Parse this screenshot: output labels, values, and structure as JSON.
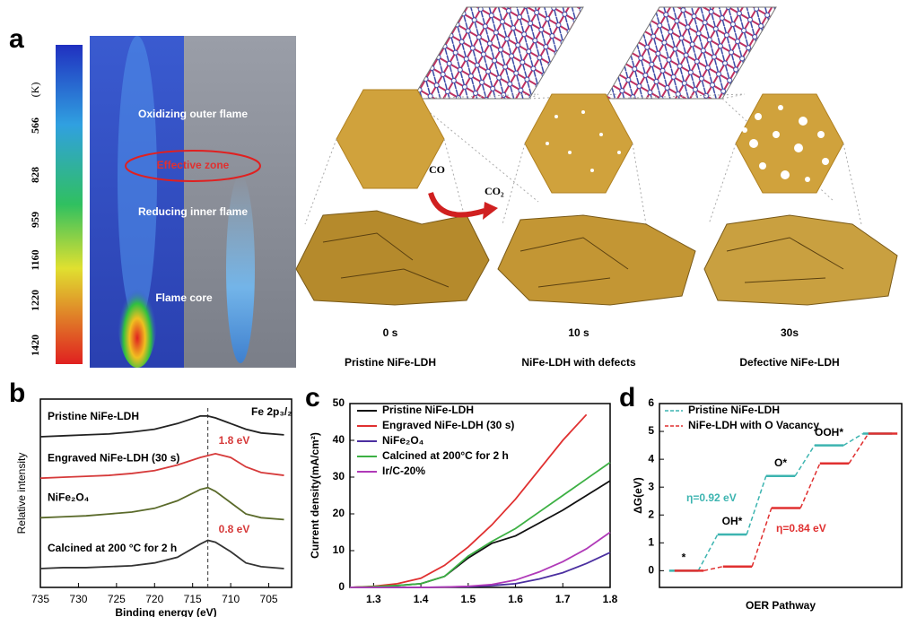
{
  "panel_a": {
    "panel": "a",
    "colorbar_unit": "(K)",
    "colorbar_ticks": [
      566,
      828,
      959,
      1160,
      1220,
      1420
    ],
    "flame_labels": [
      "Oxidizing outer flame",
      "Effective zone",
      "Reducing inner flame",
      "Flame core"
    ],
    "reactant": "CO",
    "product": "CO₂",
    "times": [
      "0 s",
      "10 s",
      "30s"
    ],
    "samples": [
      "Pristine NiFe-LDH",
      "NiFe-LDH with defects",
      "Defective NiFe-LDH"
    ]
  },
  "chart_data": [
    {
      "type": "spectra",
      "panel": "b",
      "title": "Fe 2p₃/₂",
      "ylabel": "Relative intensity",
      "xlabel": "Binding energy (eV)",
      "x": [
        735,
        732,
        729,
        726,
        723,
        720,
        717,
        714,
        713,
        712,
        710,
        708,
        706,
        703
      ],
      "xlim": [
        735,
        702
      ],
      "xticks": [
        735,
        730,
        725,
        720,
        715,
        710,
        705
      ],
      "ylim": [
        0,
        10
      ],
      "reference_x": 713,
      "shift_labels": [
        "1.8 eV",
        "0.8 eV"
      ],
      "series": [
        {
          "name": "Pristine NiFe-LDH",
          "color": "#222222",
          "values": [
            8.0,
            8.05,
            8.1,
            8.15,
            8.25,
            8.4,
            8.7,
            9.1,
            9.1,
            9.0,
            8.7,
            8.4,
            8.2,
            8.1
          ]
        },
        {
          "name": "Engraved NiFe-LDH (30 s)",
          "color": "#d63a3a",
          "values": [
            5.8,
            5.85,
            5.9,
            5.95,
            6.05,
            6.2,
            6.5,
            6.9,
            7.0,
            7.1,
            6.9,
            6.4,
            6.1,
            5.95
          ]
        },
        {
          "name": "NiFe₂O₄",
          "color": "#5a6a2a",
          "values": [
            3.7,
            3.75,
            3.8,
            3.9,
            4.0,
            4.2,
            4.6,
            5.2,
            5.3,
            5.1,
            4.5,
            3.9,
            3.7,
            3.6
          ]
        },
        {
          "name": "Calcined at 200 °C for 2 h",
          "color": "#333333",
          "values": [
            1.0,
            1.05,
            1.05,
            1.1,
            1.15,
            1.3,
            1.6,
            2.3,
            2.5,
            2.4,
            1.9,
            1.3,
            1.1,
            1.0
          ]
        }
      ]
    },
    {
      "type": "line",
      "panel": "c",
      "ylabel": "Current density(mA/cm²)",
      "x": [
        1.25,
        1.3,
        1.35,
        1.4,
        1.45,
        1.5,
        1.55,
        1.6,
        1.65,
        1.7,
        1.75,
        1.8
      ],
      "xlim": [
        1.25,
        1.8
      ],
      "xticks": [
        1.3,
        1.4,
        1.5,
        1.6,
        1.7,
        1.8
      ],
      "ylim": [
        0,
        50
      ],
      "yticks": [
        0,
        10,
        20,
        30,
        40,
        50
      ],
      "series": [
        {
          "name": "Pristine NiFe-LDH",
          "color": "#111111",
          "values": [
            0,
            0.2,
            0.5,
            1,
            3,
            8,
            12,
            14,
            17.5,
            21,
            25,
            29
          ]
        },
        {
          "name": "Engraved NiFe-LDH (30 s)",
          "color": "#e03030",
          "values": [
            0,
            0.3,
            1,
            2.5,
            6,
            11,
            17,
            24,
            32,
            40,
            47,
            null
          ]
        },
        {
          "name": "NiFe₂O₄",
          "color": "#4b2fa0",
          "values": [
            0,
            0,
            0,
            0,
            0.1,
            0.2,
            0.5,
            1,
            2.3,
            4,
            6.5,
            9.5
          ]
        },
        {
          "name": "Calcined at 200°C for 2 h",
          "color": "#3cb043",
          "values": [
            0,
            0.2,
            0.5,
            1,
            3,
            8.5,
            12.5,
            16,
            20.5,
            25,
            29.5,
            34
          ]
        },
        {
          "name": "Ir/C-20%",
          "color": "#b03ab8",
          "values": [
            0,
            0,
            0,
            0,
            0.1,
            0.3,
            0.8,
            2,
            4.2,
            7,
            10.5,
            15
          ]
        }
      ]
    },
    {
      "type": "step",
      "panel": "d",
      "ylabel": "ΔG(eV)",
      "xlabel": "OER Pathway",
      "categories": [
        "*",
        "OH*",
        "O*",
        "OOH*",
        null
      ],
      "ylim": [
        -0.6,
        6
      ],
      "yticks": [
        0,
        1,
        2,
        3,
        4,
        5,
        6
      ],
      "series": [
        {
          "name": "Pristine NiFe-LDH",
          "color": "#3cb4b0",
          "values": [
            0,
            1.3,
            3.4,
            4.5,
            4.92
          ],
          "overpotential": "η=0.92 eV"
        },
        {
          "name": "NiFe-LDH with O Vacancy",
          "color": "#e03030",
          "values": [
            0,
            0.15,
            2.25,
            3.85,
            4.92
          ],
          "overpotential": "η=0.84 eV"
        }
      ]
    }
  ]
}
